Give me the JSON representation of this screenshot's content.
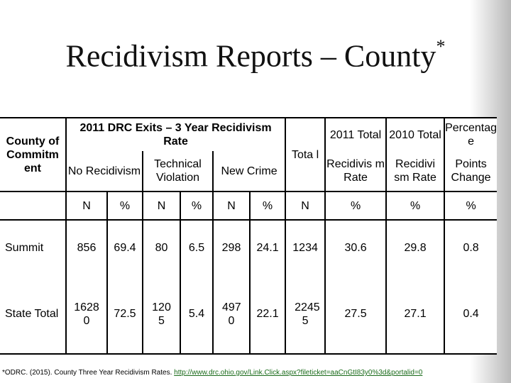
{
  "title": {
    "text": "Recidivism Reports – County",
    "mark": "*"
  },
  "table": {
    "county_header": "County of Commitm ent",
    "exits_header": "2011 DRC Exits – 3 Year Recidivism Rate",
    "total_header": "Tota l",
    "col_2011_top": "2011 Total",
    "col_2010_top": "2010 Total",
    "col_pct_top": "Percentag e",
    "no_recid": "No Recidivism",
    "tech_violation": "Technical Violation",
    "new_crime": "New Crime",
    "col_2011_sub": "Recidivis m Rate",
    "col_2010_sub": "Recidivi sm Rate",
    "col_pct_sub": "Points Change",
    "units": [
      "N",
      "%",
      "N",
      "%",
      "N",
      "%",
      "N",
      "%",
      "%",
      "%"
    ],
    "rows": [
      {
        "county": "Summit",
        "values": [
          "856",
          "69.4",
          "80",
          "6.5",
          "298",
          "24.1",
          "1234",
          "30.6",
          "29.8",
          "0.8"
        ]
      },
      {
        "county": "State Total",
        "values": [
          "1628 0",
          "72.5",
          "120 5",
          "5.4",
          "497 0",
          "22.1",
          "2245 5",
          "27.5",
          "27.1",
          "0.4"
        ]
      }
    ]
  },
  "footnote": {
    "text": "*ODRC. (2015). County Three Year Recidivism Rates.",
    "link": "http://www.drc.ohio.gov/Link.Click.aspx?fileticket=aaCnGtI83y0%3d&portalid=0"
  }
}
